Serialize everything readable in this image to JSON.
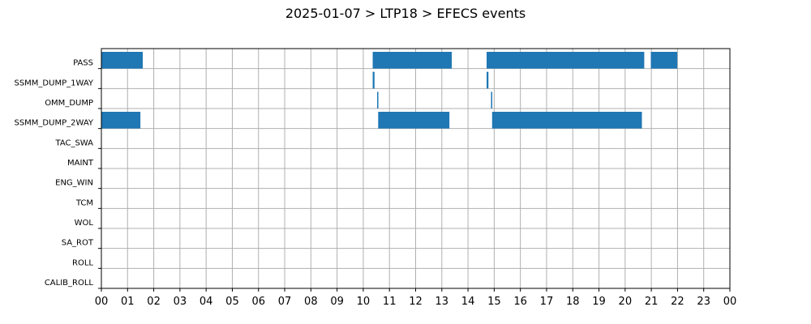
{
  "chart_data": {
    "type": "bar",
    "orientation": "horizontal-timeline",
    "title": "2025-01-07 > LTP18 > EFECS events",
    "xlabel": "",
    "ylabel": "",
    "xlim": [
      0,
      24
    ],
    "grid": true,
    "categories": [
      "PASS",
      "SSMM_DUMP_1WAY",
      "OMM_DUMP",
      "SSMM_DUMP_2WAY",
      "TAC_SWA",
      "MAINT",
      "ENG_WIN",
      "TCM",
      "WOL",
      "SA_ROT",
      "ROLL",
      "CALIB_ROLL"
    ],
    "x_tick_labels": [
      "00",
      "01",
      "02",
      "03",
      "04",
      "05",
      "06",
      "07",
      "08",
      "09",
      "10",
      "11",
      "12",
      "13",
      "14",
      "15",
      "16",
      "17",
      "18",
      "19",
      "20",
      "21",
      "22",
      "23",
      "00"
    ],
    "color": "#1f77b4",
    "events": [
      {
        "category": "PASS",
        "start": 0.0,
        "end": 1.58
      },
      {
        "category": "PASS",
        "start": 10.36,
        "end": 13.38
      },
      {
        "category": "PASS",
        "start": 14.71,
        "end": 20.73
      },
      {
        "category": "PASS",
        "start": 20.98,
        "end": 21.99
      },
      {
        "category": "SSMM_DUMP_1WAY",
        "start": 10.36,
        "end": 10.43
      },
      {
        "category": "SSMM_DUMP_1WAY",
        "start": 14.71,
        "end": 14.78
      },
      {
        "category": "OMM_DUMP",
        "start": 10.53,
        "end": 10.57
      },
      {
        "category": "OMM_DUMP",
        "start": 14.88,
        "end": 14.92
      },
      {
        "category": "SSMM_DUMP_2WAY",
        "start": 0.0,
        "end": 1.49
      },
      {
        "category": "SSMM_DUMP_2WAY",
        "start": 10.57,
        "end": 13.29
      },
      {
        "category": "SSMM_DUMP_2WAY",
        "start": 14.92,
        "end": 20.64
      }
    ]
  }
}
